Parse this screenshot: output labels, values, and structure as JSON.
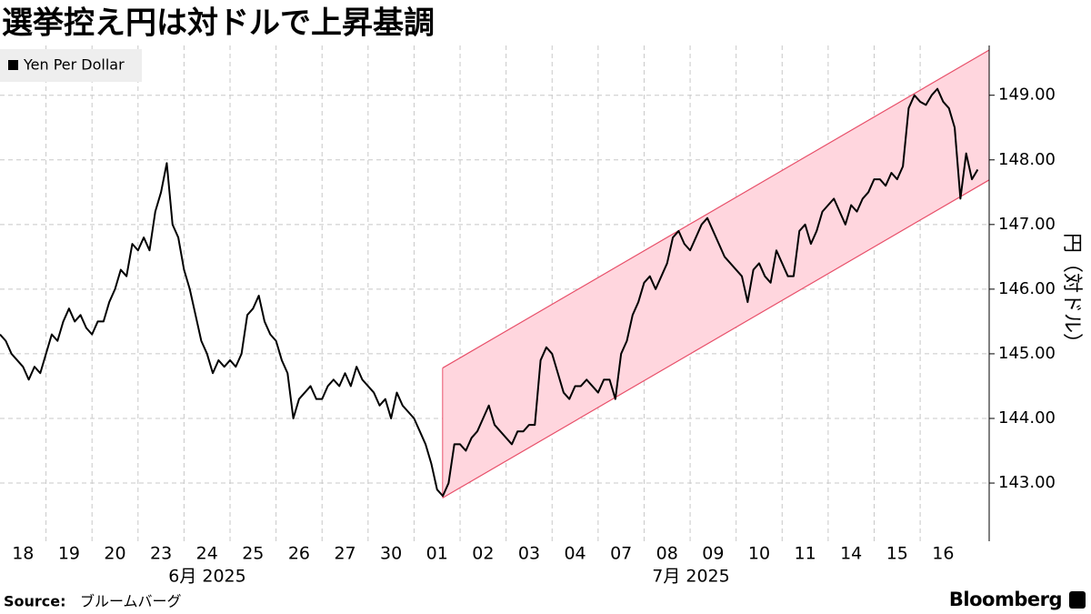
{
  "chart_data": {
    "type": "line",
    "title": "選挙控え円は対ドルで上昇基調",
    "y_axis_label": "円（対ドル）",
    "month_labels": [
      "6月 2025",
      "7月 2025"
    ],
    "source_label": "Source:",
    "source": "ブルームバーグ",
    "logo": "Bloomberg",
    "grid": true,
    "legend": "top-left",
    "xlim": [
      0,
      21.5
    ],
    "ylim": [
      142.1,
      149.77
    ],
    "xticks": [
      {
        "value": 0,
        "label": "18"
      },
      {
        "value": 1,
        "label": "19"
      },
      {
        "value": 2,
        "label": "20"
      },
      {
        "value": 3,
        "label": "23"
      },
      {
        "value": 4,
        "label": "24"
      },
      {
        "value": 5,
        "label": "25"
      },
      {
        "value": 6,
        "label": "26"
      },
      {
        "value": 7,
        "label": "27"
      },
      {
        "value": 8,
        "label": "30"
      },
      {
        "value": 9,
        "label": "01"
      },
      {
        "value": 10,
        "label": "02"
      },
      {
        "value": 11,
        "label": "03"
      },
      {
        "value": 12,
        "label": "04"
      },
      {
        "value": 13,
        "label": "07"
      },
      {
        "value": 14,
        "label": "08"
      },
      {
        "value": 15,
        "label": "09"
      },
      {
        "value": 16,
        "label": "10"
      },
      {
        "value": 17,
        "label": "11"
      },
      {
        "value": 18,
        "label": "14"
      },
      {
        "value": 19,
        "label": "15"
      },
      {
        "value": 20,
        "label": "16"
      }
    ],
    "yticks": [
      {
        "value": 143,
        "label": "143.00"
      },
      {
        "value": 144,
        "label": "144.00"
      },
      {
        "value": 145,
        "label": "145.00"
      },
      {
        "value": 146,
        "label": "146.00"
      },
      {
        "value": 147,
        "label": "147.00"
      },
      {
        "value": 148,
        "label": "148.00"
      },
      {
        "value": 149,
        "label": "149.00"
      }
    ],
    "channel": {
      "color": "#ffd6de",
      "edge_color": "#e8506a",
      "x": [
        9.62,
        21.5
      ],
      "lower": [
        142.77,
        147.69
      ],
      "upper": [
        144.78,
        149.7
      ]
    },
    "x": [
      0,
      0.125,
      0.25,
      0.375,
      0.5,
      0.625,
      0.75,
      0.875,
      1,
      1.125,
      1.25,
      1.375,
      1.5,
      1.625,
      1.75,
      1.875,
      2,
      2.125,
      2.25,
      2.375,
      2.5,
      2.625,
      2.75,
      2.875,
      3,
      3.125,
      3.25,
      3.375,
      3.5,
      3.625,
      3.75,
      3.875,
      4,
      4.125,
      4.25,
      4.375,
      4.5,
      4.625,
      4.75,
      4.875,
      5,
      5.125,
      5.25,
      5.375,
      5.5,
      5.625,
      5.75,
      5.875,
      6,
      6.125,
      6.25,
      6.375,
      6.5,
      6.625,
      6.75,
      6.875,
      7,
      7.125,
      7.25,
      7.375,
      7.5,
      7.625,
      7.75,
      7.875,
      8,
      8.125,
      8.25,
      8.375,
      8.5,
      8.625,
      8.75,
      8.875,
      9,
      9.125,
      9.25,
      9.375,
      9.5,
      9.625,
      9.75,
      9.875,
      10,
      10.125,
      10.25,
      10.375,
      10.5,
      10.625,
      10.75,
      10.875,
      11,
      11.125,
      11.25,
      11.375,
      11.5,
      11.625,
      11.75,
      11.875,
      12,
      12.125,
      12.25,
      12.375,
      12.5,
      12.625,
      12.75,
      12.875,
      13,
      13.125,
      13.25,
      13.375,
      13.5,
      13.625,
      13.75,
      13.875,
      14,
      14.125,
      14.25,
      14.375,
      14.5,
      14.625,
      14.75,
      14.875,
      15,
      15.125,
      15.25,
      15.375,
      15.5,
      15.625,
      15.75,
      15.875,
      16,
      16.125,
      16.25,
      16.375,
      16.5,
      16.625,
      16.75,
      16.875,
      17,
      17.125,
      17.25,
      17.375,
      17.5,
      17.625,
      17.75,
      17.875,
      18,
      18.125,
      18.25,
      18.375,
      18.5,
      18.625,
      18.75,
      18.875,
      19,
      19.125,
      19.25,
      19.375,
      19.5,
      19.625,
      19.75,
      19.875,
      20,
      20.125,
      20.25,
      20.375,
      20.5,
      20.625,
      20.75,
      20.875,
      21,
      21.125,
      21.25
    ],
    "series": [
      {
        "name": "Yen Per Dollar",
        "color": "#000000",
        "values": [
          145.3,
          145.2,
          145.0,
          144.9,
          144.8,
          144.6,
          144.8,
          144.7,
          145.0,
          145.3,
          145.2,
          145.5,
          145.7,
          145.5,
          145.6,
          145.4,
          145.3,
          145.5,
          145.5,
          145.8,
          146.0,
          146.3,
          146.2,
          146.7,
          146.6,
          146.8,
          146.6,
          147.2,
          147.5,
          147.95,
          147.0,
          146.8,
          146.3,
          146.0,
          145.6,
          145.2,
          145.0,
          144.7,
          144.9,
          144.8,
          144.9,
          144.8,
          145.0,
          145.6,
          145.7,
          145.9,
          145.5,
          145.3,
          145.2,
          144.9,
          144.7,
          144.0,
          144.3,
          144.4,
          144.5,
          144.3,
          144.3,
          144.5,
          144.6,
          144.5,
          144.7,
          144.5,
          144.8,
          144.6,
          144.5,
          144.4,
          144.2,
          144.3,
          144.0,
          144.4,
          144.2,
          144.1,
          144.0,
          143.8,
          143.6,
          143.3,
          142.9,
          142.8,
          143.0,
          143.6,
          143.6,
          143.5,
          143.7,
          143.8,
          144.0,
          144.2,
          143.9,
          143.8,
          143.7,
          143.6,
          143.8,
          143.8,
          143.9,
          143.9,
          144.9,
          145.1,
          145.0,
          144.7,
          144.4,
          144.3,
          144.5,
          144.5,
          144.6,
          144.5,
          144.4,
          144.6,
          144.6,
          144.3,
          145.0,
          145.2,
          145.6,
          145.8,
          146.1,
          146.2,
          146.0,
          146.2,
          146.4,
          146.8,
          146.9,
          146.7,
          146.6,
          146.8,
          147.0,
          147.1,
          146.9,
          146.7,
          146.5,
          146.4,
          146.3,
          146.2,
          145.8,
          146.3,
          146.4,
          146.2,
          146.1,
          146.6,
          146.4,
          146.2,
          146.2,
          146.9,
          147.0,
          146.7,
          146.9,
          147.2,
          147.3,
          147.4,
          147.2,
          147.0,
          147.3,
          147.2,
          147.4,
          147.5,
          147.7,
          147.7,
          147.6,
          147.8,
          147.7,
          147.9,
          148.8,
          149.0,
          148.9,
          148.85,
          149.0,
          149.1,
          148.9,
          148.8,
          148.5,
          147.4,
          148.1,
          147.7,
          147.85
        ]
      }
    ]
  }
}
